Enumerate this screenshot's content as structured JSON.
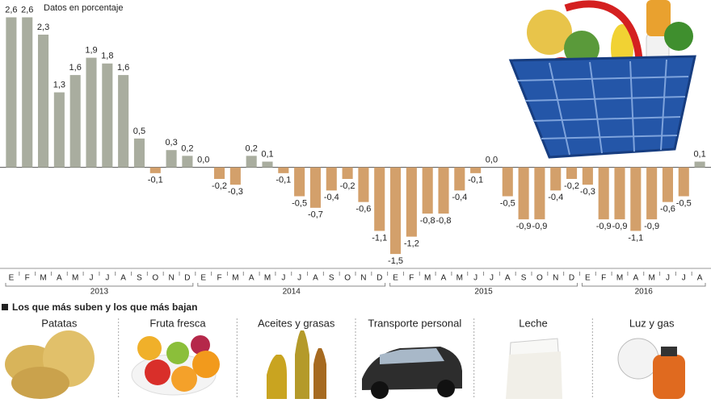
{
  "chart_data": {
    "type": "bar",
    "note": "Datos en porcentaje",
    "categories": [
      "E",
      "F",
      "M",
      "A",
      "M",
      "J",
      "J",
      "A",
      "S",
      "O",
      "N",
      "D",
      "E",
      "F",
      "M",
      "A",
      "M",
      "J",
      "J",
      "A",
      "S",
      "O",
      "N",
      "D",
      "E",
      "F",
      "M",
      "A",
      "M",
      "J",
      "J",
      "A",
      "S",
      "O",
      "N",
      "D",
      "E",
      "F",
      "M",
      "A",
      "M",
      "J",
      "J",
      "A"
    ],
    "x_groups": [
      "2013",
      "2014",
      "2015",
      "2016"
    ],
    "values": [
      2.6,
      2.6,
      2.3,
      1.3,
      1.6,
      1.9,
      1.8,
      1.6,
      0.5,
      -0.1,
      0.3,
      0.2,
      0.0,
      -0.2,
      -0.3,
      0.2,
      0.1,
      -0.1,
      -0.5,
      -0.7,
      -0.4,
      -0.2,
      -0.6,
      -1.1,
      -1.5,
      -1.2,
      -0.8,
      -0.8,
      -0.4,
      -0.1,
      0.0,
      -0.5,
      -0.9,
      -0.9,
      -0.4,
      -0.2,
      -0.3,
      -0.9,
      -0.9,
      -1.1,
      -0.9,
      -0.6,
      -0.5,
      0.1
    ],
    "value_labels": [
      "2,6",
      "2,6",
      "2,3",
      "1,3",
      "1,6",
      "1,9",
      "1,8",
      "1,6",
      "0,5",
      "-0,1",
      "0,3",
      "0,2",
      "0,0",
      "-0,2",
      "-0,3",
      "0,2",
      "0,1",
      "-0,1",
      "-0,5",
      "-0,7",
      "-0,4",
      "-0,2",
      "-0,6",
      "-1,1",
      "-1,5",
      "-1,2",
      "-0,8",
      "-0,8",
      "-0,4",
      "-0,1",
      "0,0",
      "-0,5",
      "-0,9",
      "-0,9",
      "-0,4",
      "-0,2",
      "-0,3",
      "-0,9",
      "-0,9",
      "-1,1",
      "-0,9",
      "-0,6",
      "-0,5",
      "0,1"
    ],
    "color_positive": "#a9ad9f",
    "color_negative": "#d3a06b",
    "ylim": [
      -1.75,
      2.9
    ]
  },
  "panel": {
    "title": "Los que más suben y los que más bajan",
    "items": [
      "Patatas",
      "Fruta fresca",
      "Aceites y grasas",
      "Transporte personal",
      "Leche",
      "Luz y gas"
    ]
  }
}
